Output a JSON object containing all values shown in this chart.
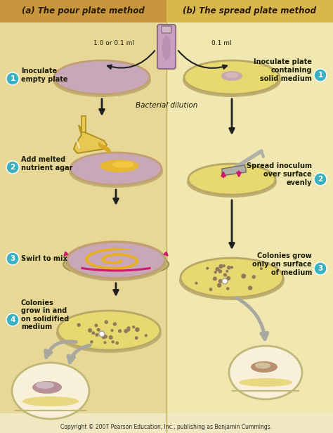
{
  "bg_color": "#efe8c0",
  "bg_left": "#e8d898",
  "bg_right": "#f0e8b0",
  "header_left_color": "#c8963c",
  "header_right_color": "#d8b84c",
  "title_left": "(a) The pour plate method",
  "title_right": "(b) The spread plate method",
  "copyright": "Copyright © 2007 Pearson Education, Inc., publishing as Benjamin Cummings.",
  "step_circle_color": "#3ab0c0",
  "plate_rim_color": "#c0a070",
  "plate_rim_color2": "#b8a868",
  "plate_fill_pink": "#c8a8b8",
  "plate_fill_yellow": "#e8d870",
  "plate_fill_yellow2": "#dcd060",
  "agar_color": "#e8b830",
  "tube_fill": "#c8a0c0",
  "tube_edge": "#907080",
  "pink_arrow_color": "#d01870",
  "gray_arrow_color": "#a8a8a0",
  "black_arrow": "#202020",
  "colony_dark": "#907858",
  "colony_med": "#a08860",
  "blob_pink": "#b89098",
  "blob_light": "#d0b8b8",
  "blob_pink2": "#b89070",
  "blob_light2": "#d0c090",
  "swirl_color": "#e8b020",
  "spreader_color": "#b0b0a8",
  "spreader_edge": "#707068"
}
